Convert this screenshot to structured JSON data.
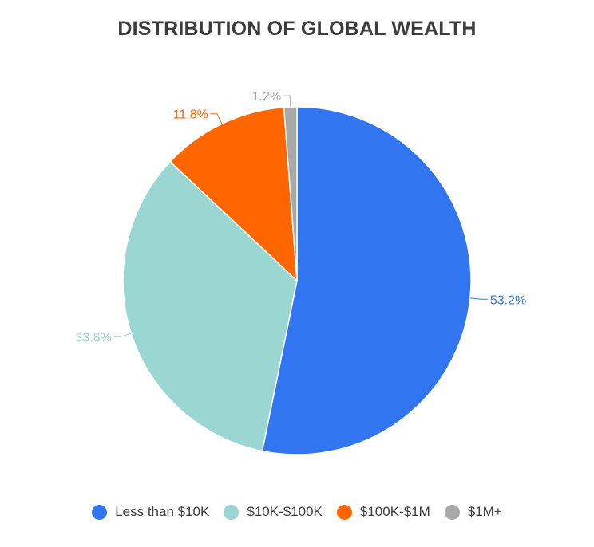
{
  "chart_data": {
    "type": "pie",
    "title": "DISTRIBUTION OF GLOBAL WEALTH",
    "categories": [
      "Less than $10K",
      "$10K-$100K",
      "$100K-$1M",
      "$1M+"
    ],
    "values": [
      53.2,
      33.8,
      11.8,
      1.2
    ],
    "value_labels": [
      "53.2%",
      "33.8%",
      "11.8%",
      "1.2%"
    ],
    "colors": [
      "#3176f0",
      "#9ad7d3",
      "#ff6600",
      "#a9a9a9"
    ],
    "label_colors": [
      "#3176f0",
      "#9ad7d3",
      "#ff6600",
      "#a9a9a9"
    ],
    "legend_position": "bottom",
    "start_angle": "top",
    "direction": "clockwise"
  }
}
